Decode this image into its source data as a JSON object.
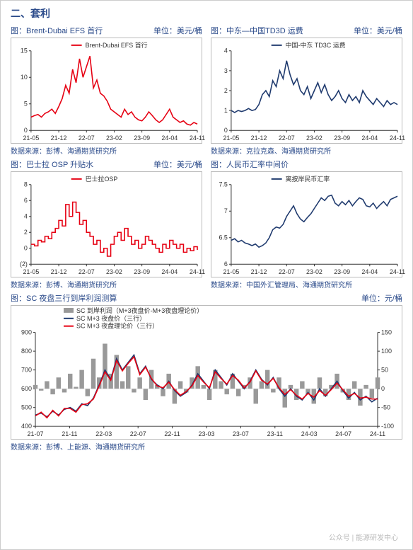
{
  "section_title": "二、套利",
  "charts": {
    "c1": {
      "title_left": "图：Brent-Dubai EFS 首行",
      "title_right": "单位：美元/桶",
      "legend": "Brent-Dubai EFS 首行",
      "legend_color": "#e60012",
      "src": "数据来源：彭博、海通期货研究所",
      "ylim": [
        0,
        15
      ],
      "ytick": [
        0,
        5,
        10,
        15
      ],
      "xticks": [
        "21-05",
        "21-12",
        "22-07",
        "23-02",
        "23-09",
        "24-04",
        "24-11"
      ],
      "line_color": "#e60012",
      "background": "#ffffff",
      "data": [
        2.5,
        2.8,
        3.0,
        2.5,
        3.2,
        3.5,
        4.0,
        3.2,
        4.5,
        6.0,
        8.5,
        7.0,
        11.5,
        9.0,
        13.5,
        10.0,
        12.0,
        14.0,
        8.0,
        9.5,
        7.0,
        6.5,
        5.5,
        4.0,
        3.5,
        3.0,
        2.5,
        4.0,
        3.0,
        3.5,
        2.5,
        2.0,
        1.8,
        2.5,
        3.5,
        2.8,
        2.0,
        1.5,
        2.0,
        3.0,
        4.0,
        2.5,
        2.0,
        1.5,
        1.8,
        1.2,
        1.0,
        1.5,
        1.2
      ]
    },
    "c2": {
      "title_left": "图：中东—中国TD3D 运费",
      "title_right": "单位：美元/桶",
      "legend": "中国-中东 TD3C 运费",
      "legend_color": "#1f3a6e",
      "src": "数据来源：克拉克森、海通期货研究所",
      "ylim": [
        0,
        4
      ],
      "ytick": [
        0,
        1,
        2,
        3,
        4
      ],
      "xticks": [
        "21-05",
        "21-12",
        "22-07",
        "23-02",
        "23-09",
        "24-04",
        "24-11"
      ],
      "line_color": "#1f3a6e",
      "background": "#ffffff",
      "data": [
        1.0,
        0.9,
        1.0,
        0.95,
        1.0,
        1.1,
        1.0,
        1.05,
        1.3,
        1.8,
        2.0,
        1.7,
        2.5,
        2.2,
        3.0,
        2.6,
        3.5,
        2.8,
        2.3,
        2.6,
        2.0,
        1.8,
        2.2,
        1.6,
        2.0,
        2.4,
        1.9,
        2.3,
        1.8,
        1.5,
        1.7,
        2.0,
        1.6,
        1.4,
        1.8,
        1.5,
        1.7,
        1.4,
        2.0,
        1.7,
        1.5,
        1.3,
        1.6,
        1.4,
        1.2,
        1.5,
        1.3,
        1.4,
        1.3
      ]
    },
    "c3": {
      "title_left": "图：巴士拉 OSP 升贴水",
      "title_right": "单位：美元/桶",
      "legend": "巴士拉OSP",
      "legend_color": "#e60012",
      "src": "数据来源：彭博、海通期货研究所",
      "ylim": [
        -2,
        8
      ],
      "ytick": [
        -2,
        0,
        2,
        4,
        6,
        8
      ],
      "ytick_labels": [
        "(2)",
        "0",
        "2",
        "4",
        "6",
        "8"
      ],
      "xticks": [
        "21-05",
        "21-12",
        "22-07",
        "23-02",
        "23-09",
        "24-04",
        "24-11"
      ],
      "line_color": "#e60012",
      "background": "#ffffff",
      "step": true,
      "data": [
        0.5,
        0.3,
        1.0,
        0.8,
        1.5,
        1.2,
        2.0,
        2.5,
        3.5,
        2.8,
        5.5,
        4.0,
        5.8,
        4.5,
        3.0,
        3.5,
        2.0,
        1.5,
        0.5,
        1.0,
        -0.5,
        0.0,
        -1.0,
        0.5,
        1.5,
        2.0,
        1.0,
        2.5,
        1.5,
        0.5,
        1.0,
        0.0,
        0.5,
        1.5,
        1.0,
        0.5,
        0.0,
        -0.5,
        0.5,
        0.0,
        1.0,
        0.5,
        0.0,
        0.5,
        -0.5,
        0.0,
        -0.3,
        0.2,
        -0.2
      ]
    },
    "c4": {
      "title_left": "图：人民币汇率中间价",
      "title_right": "",
      "legend": "离按岸民币汇率",
      "legend_color": "#1f3a6e",
      "src": "数据来源：中国外汇管理局、海通期货研究所",
      "ylim": [
        6,
        7.5
      ],
      "ytick": [
        6,
        6.5,
        7,
        7.5
      ],
      "xticks": [
        "21-05",
        "21-12",
        "22-07",
        "23-02",
        "23-09",
        "24-04",
        "24-11"
      ],
      "line_color": "#1f3a6e",
      "background": "#ffffff",
      "data": [
        6.45,
        6.48,
        6.42,
        6.45,
        6.4,
        6.38,
        6.35,
        6.38,
        6.32,
        6.35,
        6.4,
        6.5,
        6.65,
        6.7,
        6.68,
        6.75,
        6.9,
        7.0,
        7.1,
        6.95,
        6.85,
        6.8,
        6.88,
        6.95,
        7.05,
        7.15,
        7.25,
        7.2,
        7.28,
        7.3,
        7.15,
        7.1,
        7.18,
        7.12,
        7.2,
        7.1,
        7.18,
        7.25,
        7.22,
        7.1,
        7.08,
        7.15,
        7.05,
        7.12,
        7.18,
        7.1,
        7.22,
        7.25,
        7.28
      ]
    },
    "c5": {
      "title_left": "图：SC 夜盘三行到岸利润测算",
      "title_right": "单位：元/桶",
      "src": "数据来源：彭博、上能源、海通期货研究所",
      "y1lim": [
        400,
        900
      ],
      "y1tick": [
        400,
        500,
        600,
        700,
        800,
        900
      ],
      "y2lim": [
        -100,
        150
      ],
      "y2tick": [
        -100,
        -50,
        0,
        50,
        100,
        150
      ],
      "xticks": [
        "21-07",
        "21-11",
        "22-03",
        "22-07",
        "22-11",
        "23-03",
        "23-07",
        "23-11",
        "24-03",
        "24-07",
        "24-11"
      ],
      "legend_items": [
        {
          "label": "SC 到岸利润（M+3夜盘价-M+3夜盘理论价）",
          "color": "#999999",
          "type": "bar"
        },
        {
          "label": "SC M+3 夜盘价（三行）",
          "color": "#1f3a6e",
          "type": "line"
        },
        {
          "label": "SC M+3 夜盘理论价（三行）",
          "color": "#e60012",
          "type": "line"
        }
      ],
      "background": "#ffffff",
      "bars": [
        10,
        -5,
        20,
        -15,
        30,
        -10,
        40,
        5,
        50,
        -20,
        80,
        30,
        120,
        40,
        90,
        20,
        60,
        -10,
        30,
        -30,
        50,
        10,
        -20,
        40,
        -40,
        20,
        -10,
        30,
        60,
        10,
        -30,
        50,
        20,
        -15,
        40,
        -20,
        10,
        30,
        -40,
        20,
        50,
        -10,
        30,
        -50,
        10,
        -30,
        20,
        -15,
        -40,
        30,
        -20,
        10,
        40,
        -10,
        -30,
        20,
        -45,
        10,
        -25,
        30
      ],
      "line1": [
        460,
        470,
        450,
        480,
        460,
        490,
        500,
        480,
        520,
        510,
        550,
        620,
        700,
        650,
        760,
        700,
        740,
        780,
        680,
        720,
        650,
        620,
        600,
        640,
        590,
        560,
        580,
        620,
        680,
        640,
        600,
        700,
        660,
        620,
        680,
        640,
        600,
        640,
        700,
        650,
        620,
        660,
        600,
        560,
        600,
        560,
        540,
        580,
        540,
        600,
        560,
        600,
        640,
        590,
        550,
        580,
        540,
        560,
        530,
        550
      ],
      "line2": [
        455,
        475,
        445,
        485,
        455,
        495,
        495,
        475,
        515,
        520,
        545,
        615,
        690,
        645,
        750,
        695,
        735,
        770,
        675,
        715,
        655,
        615,
        605,
        635,
        595,
        565,
        585,
        615,
        670,
        635,
        605,
        690,
        655,
        625,
        670,
        645,
        605,
        635,
        695,
        645,
        625,
        655,
        605,
        570,
        595,
        565,
        545,
        575,
        555,
        590,
        565,
        595,
        630,
        595,
        560,
        575,
        550,
        555,
        545,
        545
      ]
    }
  },
  "watermark": "公众号 | 能源研发中心"
}
